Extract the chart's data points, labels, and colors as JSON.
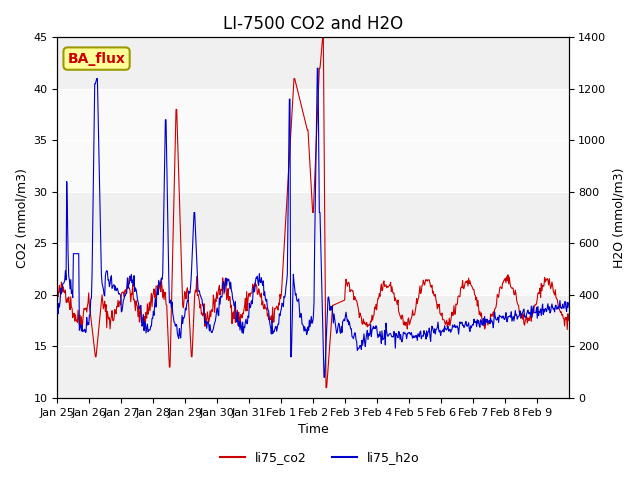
{
  "title": "LI-7500 CO2 and H2O",
  "xlabel": "Time",
  "ylabel_left": "CO2 (mmol/m3)",
  "ylabel_right": "H2O (mmol/m3)",
  "ylim_left": [
    10,
    45
  ],
  "ylim_right": [
    0,
    1400
  ],
  "xtick_labels": [
    "Jan 25",
    "Jan 26",
    "Jan 27",
    "Jan 28",
    "Jan 29",
    "Jan 30",
    "Jan 31",
    "Feb 1",
    "Feb 2",
    "Feb 3",
    "Feb 4",
    "Feb 5",
    "Feb 6",
    "Feb 7",
    "Feb 8",
    "Feb 9"
  ],
  "legend_labels": [
    "li75_co2",
    "li75_h2o"
  ],
  "co2_color": "#cc0000",
  "h2o_color": "#0000cc",
  "annotation_text": "BA_flux",
  "annotation_facecolor": "#ffff99",
  "annotation_edgecolor": "#999900",
  "annotation_textcolor": "#cc0000",
  "title_fontsize": 12,
  "axis_fontsize": 9,
  "tick_fontsize": 8,
  "legend_fontsize": 9
}
